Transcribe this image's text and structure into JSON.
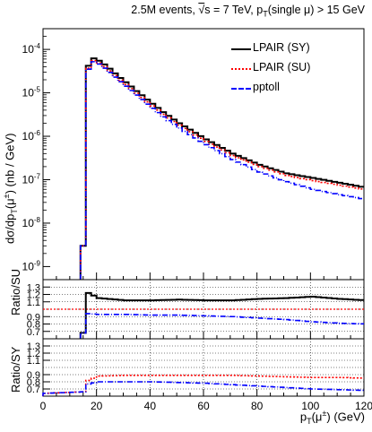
{
  "figure": {
    "title": {
      "prefix": "2.5M events, ",
      "sqrt": "√",
      "s": "s",
      "energy": " = 7 TeV, p",
      "sub": "T",
      "cut": "(single μ) > 15 GeV"
    },
    "ylabel_main": {
      "a": "dσ/dp",
      "sub": "T",
      "b": "(μ",
      "sup": "±",
      "c": ") (nb / GeV)"
    },
    "ylabel_ratio_su": "Ratio/SU",
    "ylabel_ratio_sy": "Ratio/SY",
    "xlabel": {
      "a": "p",
      "sub": "T",
      "b": "(μ",
      "sup": "±",
      "c": ") (GeV)"
    }
  },
  "legend": [
    {
      "label": "LPAIR (SY)",
      "color": "#000000",
      "style": "solid"
    },
    {
      "label": "LPAIR (SU)",
      "color": "#ff0000",
      "style": "dotted"
    },
    {
      "label": "pptoll",
      "color": "#0000ff",
      "style": "dashdot"
    }
  ],
  "chart_data": [
    {
      "type": "line",
      "panel": "main",
      "xlim": [
        0,
        120
      ],
      "ylim": [
        5e-10,
        0.0003
      ],
      "log_y": true,
      "y_ticks": [
        {
          "v": 1e-09,
          "label": "10-9"
        },
        {
          "v": 1e-08,
          "label": "10-8"
        },
        {
          "v": 1e-07,
          "label": "10-7"
        },
        {
          "v": 1e-06,
          "label": "10-6"
        },
        {
          "v": 1e-05,
          "label": "10-5"
        },
        {
          "v": 0.0001,
          "label": "10-4"
        }
      ],
      "x_ticks": [
        0,
        20,
        40,
        60,
        80,
        100,
        120
      ],
      "grid": false,
      "bin_width": 2,
      "x": [
        14,
        16,
        18,
        20,
        22,
        24,
        26,
        28,
        30,
        32,
        34,
        36,
        38,
        40,
        44,
        50,
        60,
        70,
        80,
        90,
        100,
        110,
        120
      ],
      "series": [
        {
          "name": "LPAIR (SY)",
          "values": [
            3e-09,
            4.2e-05,
            6.2e-05,
            5.5e-05,
            4.5e-05,
            3.6e-05,
            2.8e-05,
            2.2e-05,
            1.75e-05,
            1.4e-05,
            1.1e-05,
            8.8e-06,
            7e-06,
            5.6e-06,
            3.6e-06,
            2e-06,
            8.5e-07,
            4e-07,
            2.2e-07,
            1.4e-07,
            1.1e-07,
            8.5e-08,
            6.5e-08
          ]
        },
        {
          "name": "LPAIR (SU)",
          "values": [
            3e-09,
            3.7e-05,
            5.5e-05,
            4.9e-05,
            4e-05,
            3.2e-05,
            2.5e-05,
            1.95e-05,
            1.55e-05,
            1.25e-05,
            9.8e-06,
            7.8e-06,
            6.2e-06,
            5e-06,
            3.2e-06,
            1.8e-06,
            7.6e-07,
            3.6e-07,
            2e-07,
            1.25e-07,
            9.5e-08,
            7.5e-08,
            5.8e-08
          ]
        },
        {
          "name": "pptoll",
          "values": [
            3e-09,
            3.5e-05,
            5.2e-05,
            4.6e-05,
            3.7e-05,
            2.95e-05,
            2.3e-05,
            1.8e-05,
            1.42e-05,
            1.13e-05,
            8.9e-06,
            7e-06,
            5.5e-06,
            4.4e-06,
            2.8e-06,
            1.55e-06,
            6.4e-07,
            2.9e-07,
            1.5e-07,
            9e-08,
            6e-08,
            4.5e-08,
            3.5e-08
          ]
        }
      ]
    },
    {
      "type": "line",
      "panel": "ratio-su",
      "ylabel": "Ratio/SU",
      "xlim": [
        0,
        120
      ],
      "ylim": [
        0.6,
        1.4
      ],
      "y_ticks": [
        {
          "v": 0.7,
          "label": "0.7"
        },
        {
          "v": 0.8,
          "label": "0.8"
        },
        {
          "v": 0.9,
          "label": "0.9"
        },
        {
          "v": 1.1,
          "label": "1.1"
        },
        {
          "v": 1.2,
          "label": "1.2"
        },
        {
          "v": 1.3,
          "label": "1.3"
        }
      ],
      "grid": true,
      "reference_line": 1.0,
      "x": [
        14,
        16,
        20,
        30,
        40,
        50,
        60,
        70,
        80,
        90,
        100,
        110,
        120
      ],
      "series": [
        {
          "name": "LPAIR (SY)",
          "values": [
            0.68,
            1.22,
            1.15,
            1.12,
            1.12,
            1.13,
            1.12,
            1.12,
            1.14,
            1.15,
            1.17,
            1.14,
            1.12
          ]
        },
        {
          "name": "pptoll",
          "values": [
            0.68,
            0.94,
            0.93,
            0.93,
            0.92,
            0.92,
            0.91,
            0.9,
            0.88,
            0.86,
            0.83,
            0.81,
            0.8
          ]
        }
      ]
    },
    {
      "type": "line",
      "panel": "ratio-sy",
      "ylabel": "Ratio/SY",
      "xlim": [
        0,
        120
      ],
      "ylim": [
        0.6,
        1.4
      ],
      "y_ticks": [
        {
          "v": 0.7,
          "label": "0.7"
        },
        {
          "v": 0.8,
          "label": "0.8"
        },
        {
          "v": 0.9,
          "label": "0.9"
        },
        {
          "v": 1.1,
          "label": "1.1"
        },
        {
          "v": 1.2,
          "label": "1.2"
        },
        {
          "v": 1.3,
          "label": "1.3"
        }
      ],
      "grid": true,
      "x": [
        0,
        14,
        16,
        20,
        30,
        40,
        50,
        60,
        70,
        80,
        90,
        100,
        110,
        120
      ],
      "series": [
        {
          "name": "LPAIR (SU)",
          "values": [
            0.64,
            0.66,
            0.82,
            0.88,
            0.89,
            0.89,
            0.89,
            0.89,
            0.89,
            0.88,
            0.87,
            0.86,
            0.86,
            0.85
          ]
        },
        {
          "name": "pptoll",
          "values": [
            0.64,
            0.66,
            0.77,
            0.8,
            0.8,
            0.8,
            0.79,
            0.78,
            0.76,
            0.74,
            0.72,
            0.7,
            0.69,
            0.68
          ]
        }
      ]
    }
  ]
}
